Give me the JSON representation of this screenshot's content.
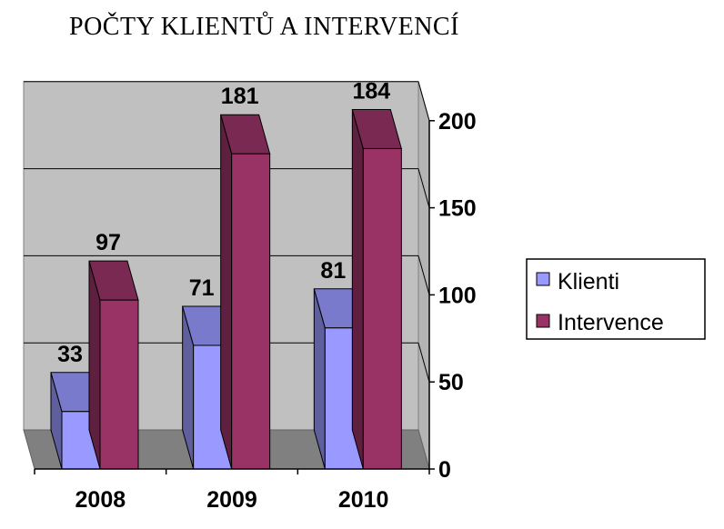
{
  "chart_data": {
    "type": "bar",
    "title": "POČTY KLIENTŮ A INTERVENCÍ",
    "categories": [
      "2008",
      "2009",
      "2010"
    ],
    "series": [
      {
        "name": "Klienti",
        "values": [
          33,
          71,
          81
        ],
        "color": "#9999ff"
      },
      {
        "name": "Intervence",
        "values": [
          97,
          181,
          184
        ],
        "color": "#993366"
      }
    ],
    "ylim": [
      0,
      200
    ],
    "yticks": [
      "0",
      "50",
      "100",
      "150",
      "200"
    ],
    "grid": true,
    "three_d": true,
    "legend_position": "right",
    "data_labels": true,
    "colors": {
      "wall": "#c0c0c0",
      "side_wall": "#b4b4b4",
      "floor": "#808080"
    }
  }
}
